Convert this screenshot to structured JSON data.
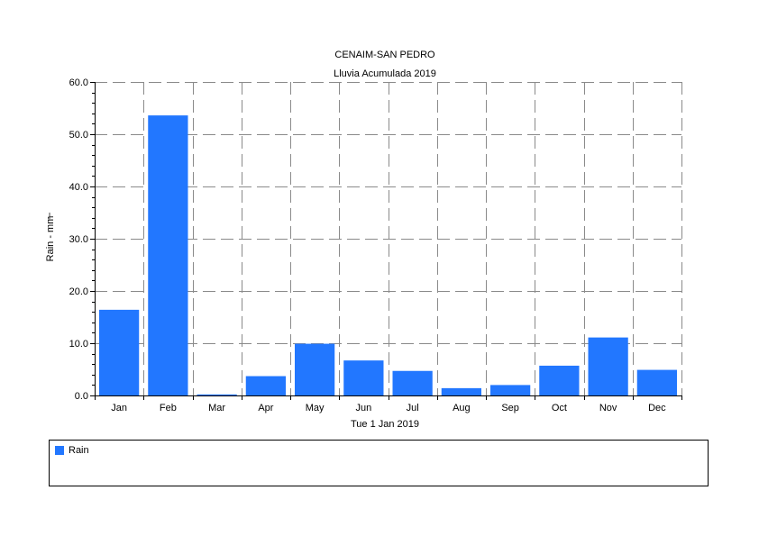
{
  "chart_data": {
    "type": "bar",
    "title": "CENAIM-SAN PEDRO",
    "subtitle": "Lluvia Acumulada 2019",
    "xlabel": "Tue 1 Jan 2019",
    "ylabel": "Rain - mm",
    "ylim": [
      0,
      60
    ],
    "yticks": [
      "0.0",
      "10.0",
      "20.0",
      "30.0",
      "40.0",
      "50.0",
      "60.0"
    ],
    "grid": true,
    "legend_position": "bottom",
    "categories": [
      "Jan",
      "Feb",
      "Mar",
      "Apr",
      "May",
      "Jun",
      "Jul",
      "Aug",
      "Sep",
      "Oct",
      "Nov",
      "Dec"
    ],
    "series": [
      {
        "name": "Rain",
        "color": "#2277ff",
        "values": [
          16.4,
          53.6,
          0.2,
          3.7,
          9.9,
          6.7,
          4.7,
          1.4,
          2.0,
          5.7,
          11.1,
          4.9
        ]
      }
    ]
  }
}
